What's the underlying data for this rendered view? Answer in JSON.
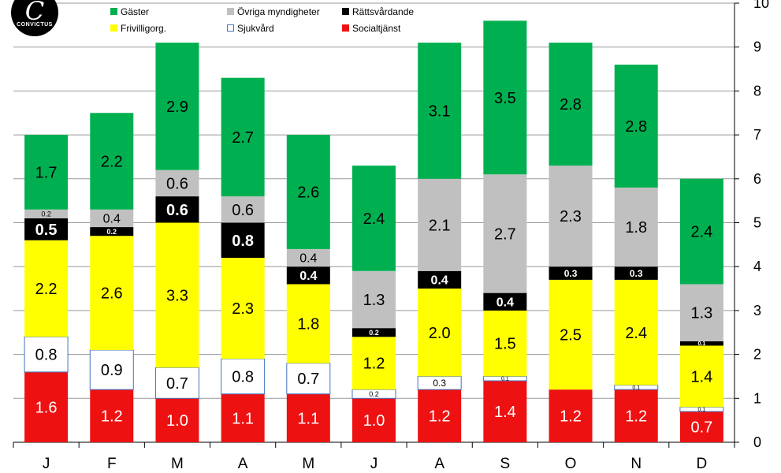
{
  "logo": {
    "text": "CONVICTUS"
  },
  "chart_data": {
    "type": "bar",
    "stacked": true,
    "categories": [
      "J",
      "F",
      "M",
      "A",
      "M",
      "J",
      "A",
      "S",
      "O",
      "N",
      "D"
    ],
    "ylim": [
      0,
      10
    ],
    "yticks": [
      "0",
      "1",
      "2",
      "3",
      "4",
      "5",
      "6",
      "7",
      "8",
      "9",
      "10"
    ],
    "y_axis_side": "right",
    "grid": true,
    "legend_position": "top-left",
    "series": [
      {
        "name": "Socialtjänst",
        "color": "#ee1111",
        "label_color": "#ffffff",
        "values": [
          1.6,
          1.2,
          1.0,
          1.1,
          1.1,
          1.0,
          1.2,
          1.4,
          1.2,
          1.2,
          0.7
        ],
        "labels": [
          "1.6",
          "1.2",
          "1.0",
          "1.1",
          "1.1",
          "1.0",
          "1.2",
          "1.4",
          "1.2",
          "1.2",
          "0.7"
        ]
      },
      {
        "name": "Sjukvård",
        "color": "#ffffff",
        "stroke": "#4472c4",
        "label_color": "#000000",
        "values": [
          0.8,
          0.9,
          0.7,
          0.8,
          0.7,
          0.2,
          0.3,
          0.1,
          0.0,
          0.1,
          0.1
        ],
        "labels": [
          "0.8",
          "0.9",
          "0.7",
          "0.8",
          "0.7",
          "0.2",
          "0.3",
          "0.1",
          "",
          "0.1",
          "0.1"
        ]
      },
      {
        "name": "Frivilligorg.",
        "color": "#ffff00",
        "label_color": "#000000",
        "values": [
          2.2,
          2.6,
          3.3,
          2.3,
          1.8,
          1.2,
          2.0,
          1.5,
          2.5,
          2.4,
          1.4
        ],
        "labels": [
          "2.2",
          "2.6",
          "3.3",
          "2.3",
          "1.8",
          "1.2",
          "2.0",
          "1.5",
          "2.5",
          "2.4",
          "1.4"
        ]
      },
      {
        "name": "Rättsvårdande",
        "color": "#000000",
        "label_color": "#ffffff",
        "values": [
          0.5,
          0.2,
          0.6,
          0.8,
          0.4,
          0.2,
          0.4,
          0.4,
          0.3,
          0.3,
          0.1
        ],
        "labels": [
          "0.5",
          "0.2",
          "0.6",
          "0.8",
          "0.4",
          "0.2",
          "0.4",
          "0.4",
          "0.3",
          "0.3",
          "0.1"
        ]
      },
      {
        "name": "Övriga myndigheter",
        "color": "#c0c0c0",
        "label_color": "#000000",
        "values": [
          0.2,
          0.4,
          0.6,
          0.6,
          0.4,
          1.3,
          2.1,
          2.7,
          2.3,
          1.8,
          1.3
        ],
        "labels": [
          "0.2",
          "0.4",
          "0.6",
          "0.6",
          "0.4",
          "1.3",
          "2.1",
          "2.7",
          "2.3",
          "1.8",
          "1.3"
        ]
      },
      {
        "name": "Gäster",
        "color": "#00b050",
        "label_color": "#000000",
        "values": [
          1.7,
          2.2,
          2.9,
          2.7,
          2.6,
          2.4,
          3.1,
          3.5,
          2.8,
          2.8,
          2.4
        ],
        "labels": [
          "1.7",
          "2.2",
          "2.9",
          "2.7",
          "2.6",
          "2.4",
          "3.1",
          "3.5",
          "2.8",
          "2.8",
          "2.4"
        ]
      }
    ]
  }
}
